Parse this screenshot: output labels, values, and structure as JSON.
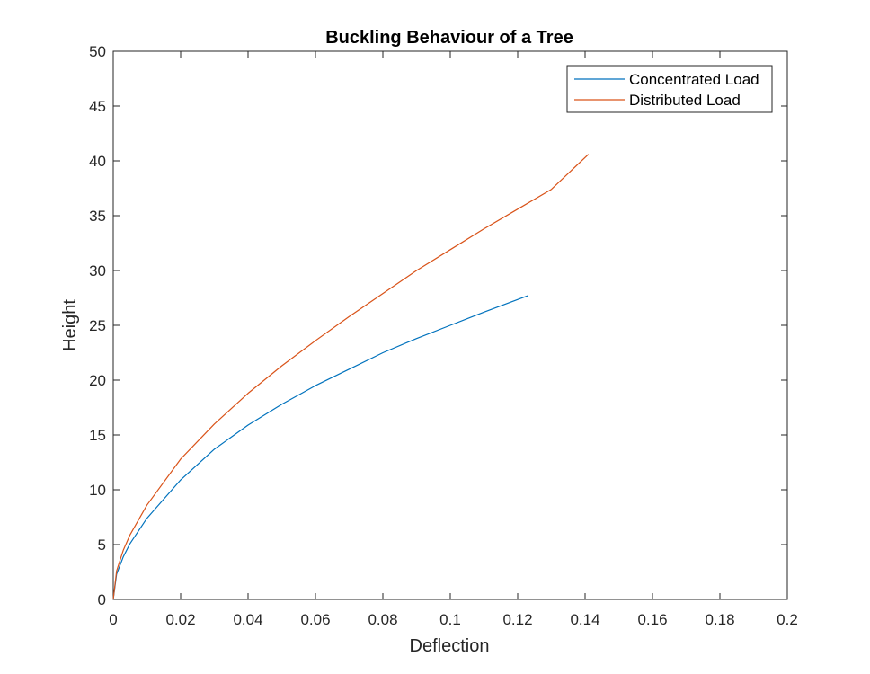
{
  "chart_data": {
    "type": "line",
    "title": "Buckling Behaviour of a Tree",
    "xlabel": "Deflection",
    "ylabel": "Height",
    "xlim": [
      0,
      0.2
    ],
    "ylim": [
      0,
      50
    ],
    "xticks": [
      0,
      0.02,
      0.04,
      0.06,
      0.08,
      0.1,
      0.12,
      0.14,
      0.16,
      0.18,
      0.2
    ],
    "xtick_labels": [
      "0",
      "0.02",
      "0.04",
      "0.06",
      "0.08",
      "0.1",
      "0.12",
      "0.14",
      "0.16",
      "0.18",
      "0.2"
    ],
    "yticks": [
      0,
      5,
      10,
      15,
      20,
      25,
      30,
      35,
      40,
      45,
      50
    ],
    "ytick_labels": [
      "0",
      "5",
      "10",
      "15",
      "20",
      "25",
      "30",
      "35",
      "40",
      "45",
      "50"
    ],
    "grid": false,
    "legend_position": "top-right",
    "series": [
      {
        "name": "Concentrated Load",
        "color": "#0072BD",
        "x": [
          0,
          0.001,
          0.003,
          0.005,
          0.01,
          0.02,
          0.03,
          0.04,
          0.05,
          0.06,
          0.07,
          0.08,
          0.09,
          0.1,
          0.11,
          0.123
        ],
        "y": [
          0,
          2.3,
          3.9,
          5.1,
          7.4,
          10.9,
          13.7,
          15.9,
          17.8,
          19.5,
          21.0,
          22.5,
          23.8,
          25.0,
          26.2,
          27.7
        ]
      },
      {
        "name": "Distributed Load",
        "color": "#D95319",
        "x": [
          0,
          0.001,
          0.003,
          0.005,
          0.01,
          0.02,
          0.03,
          0.04,
          0.05,
          0.06,
          0.07,
          0.08,
          0.09,
          0.1,
          0.11,
          0.12,
          0.13,
          0.141
        ],
        "y": [
          0,
          2.6,
          4.5,
          5.9,
          8.6,
          12.8,
          16.0,
          18.8,
          21.3,
          23.6,
          25.8,
          27.9,
          30.0,
          31.9,
          33.8,
          35.6,
          37.4,
          40.6
        ]
      }
    ]
  }
}
